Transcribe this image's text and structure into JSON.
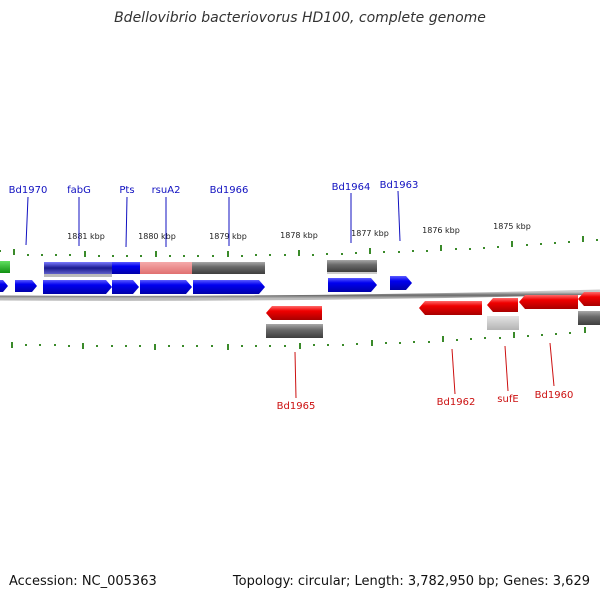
{
  "title": "Bdellovibrio bacteriovorus HD100, complete genome",
  "footer": {
    "accession": "Accession: NC_005363",
    "summary": "Topology: circular; Length: 3,782,950 bp; Genes: 3,629"
  },
  "colors": {
    "forward": "#0000ee",
    "reverse": "#ee0000",
    "tick": "#3a8a2a",
    "backbone": "#777777",
    "gray": "#666666",
    "label_forward": "#1010c0",
    "label_reverse": "#cc1010"
  },
  "scale_labels": [
    "1881 kbp",
    "1880 kbp",
    "1879 kbp",
    "1878 kbp",
    "1877 kbp",
    "1876 kbp",
    "1875 kbp"
  ],
  "top_labels": [
    "Bd1970",
    "fabG",
    "Pts",
    "rsuA2",
    "Bd1966",
    "Bd1964",
    "Bd1963"
  ],
  "bottom_labels": [
    "Bd1965",
    "Bd1962",
    "sufE",
    "Bd1960"
  ]
}
